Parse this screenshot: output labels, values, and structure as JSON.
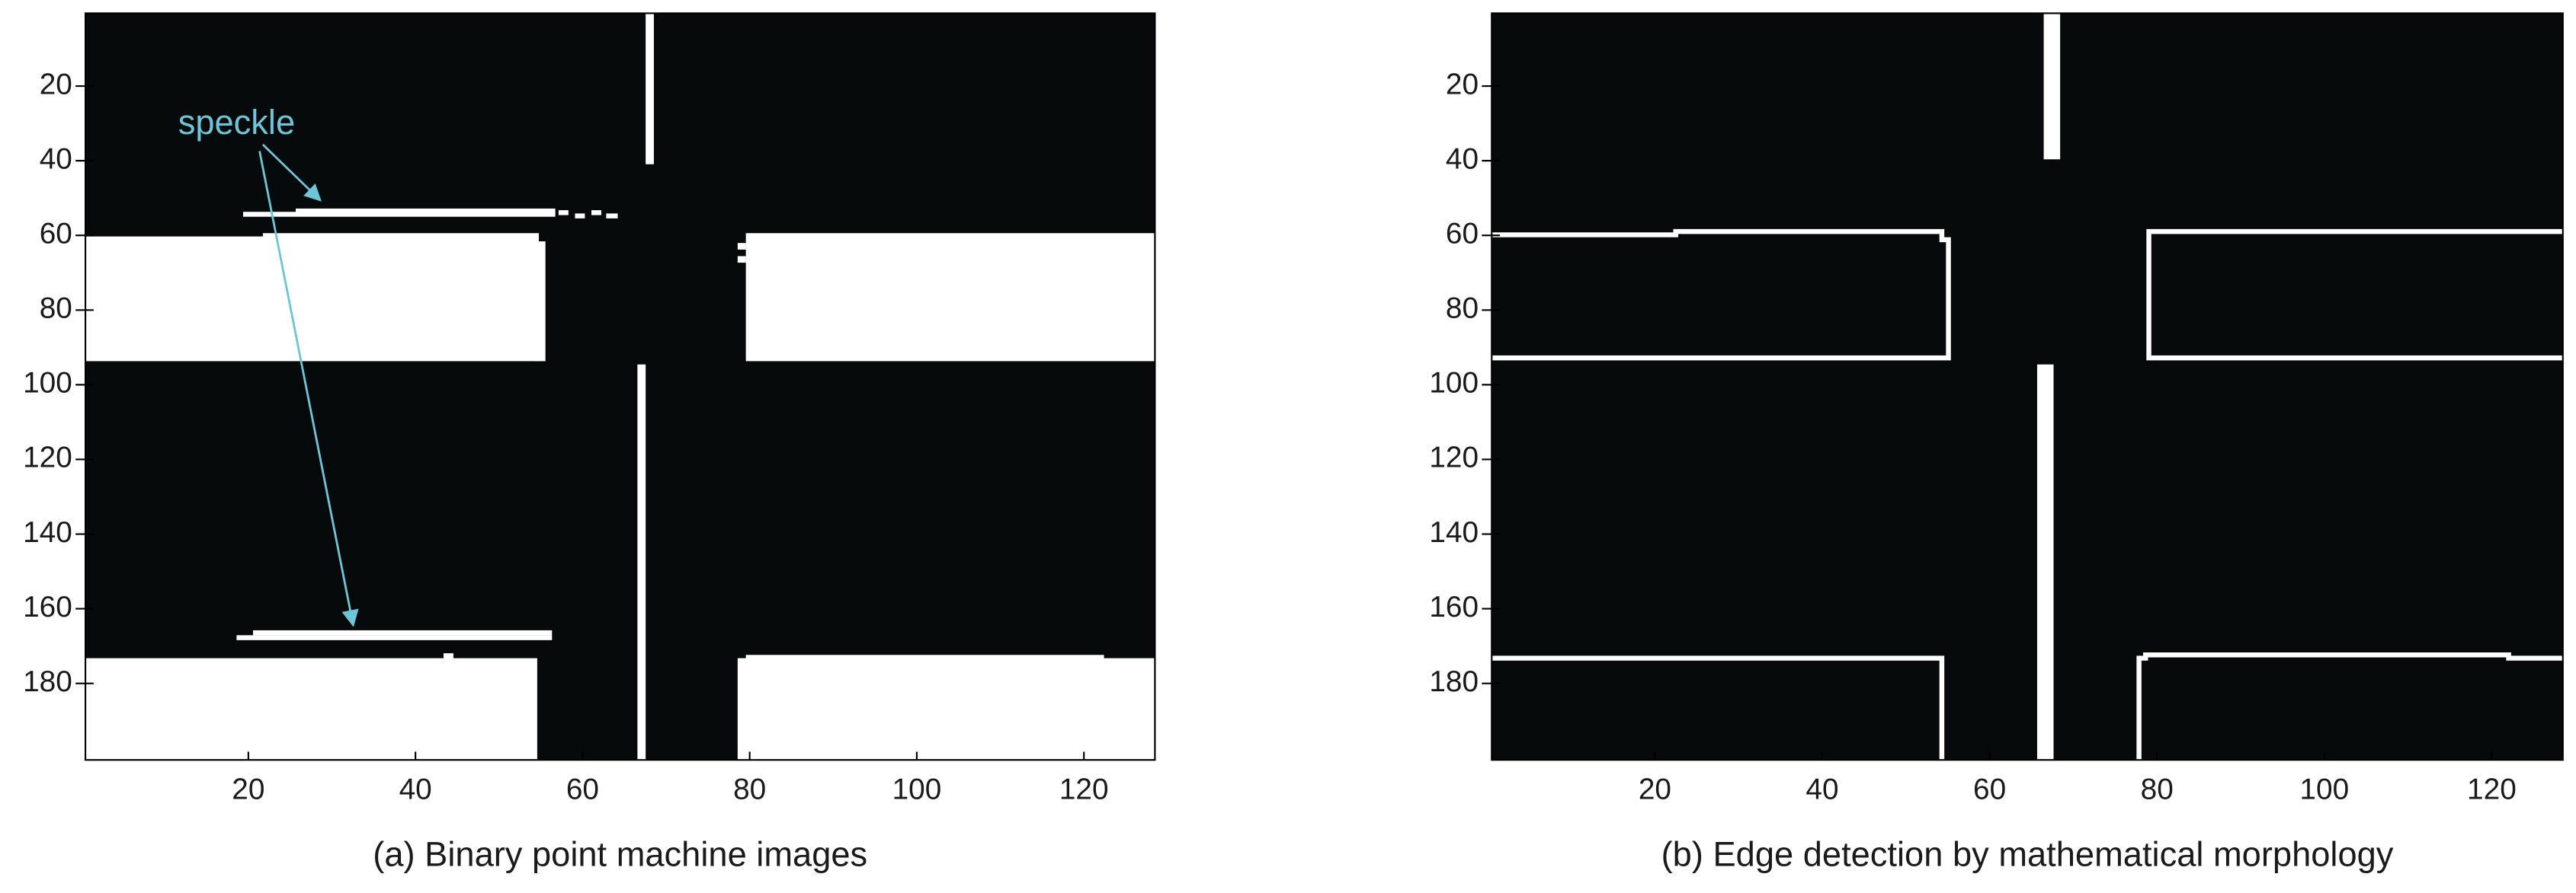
{
  "chart_data": [
    {
      "type": "image",
      "caption": "(a) Binary point machine images",
      "annotation": "speckle",
      "xlim": [
        0.5,
        128.5
      ],
      "ylim": [
        200.5,
        0.5
      ],
      "xticks": [
        20,
        40,
        60,
        80,
        100,
        120
      ],
      "yticks": [
        20,
        40,
        60,
        80,
        100,
        120,
        140,
        160,
        180
      ]
    },
    {
      "type": "image",
      "caption": "(b) Edge detection by mathematical morphology",
      "xlim": [
        0.5,
        128.5
      ],
      "ylim": [
        200.5,
        0.5
      ],
      "xticks": [
        20,
        40,
        60,
        80,
        100,
        120
      ],
      "yticks": [
        20,
        40,
        60,
        80,
        100,
        120,
        140,
        160,
        180
      ]
    }
  ]
}
